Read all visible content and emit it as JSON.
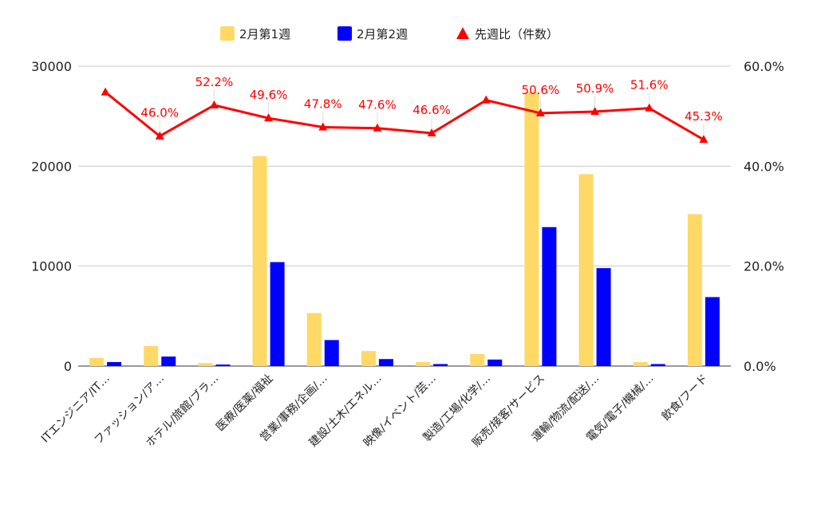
{
  "chart_data": {
    "type": "bar",
    "title": "",
    "categories": [
      "ITエンジニア/IT…",
      "ファッション/ア…",
      "ホテル/旅館/ブラ…",
      "医療/医薬/福祉",
      "営業/事務/企画/…",
      "建設/土木/エネル…",
      "映像/イベント/芸…",
      "製造/工場/化学/…",
      "販売/接客/サービス",
      "運輸/物流/配送/…",
      "電気/電子/機械/…",
      "飲食/フード"
    ],
    "series": [
      {
        "name": "2月第1週",
        "kind": "bar",
        "axis": "left",
        "color": "#FFD966",
        "values": [
          800,
          2000,
          300,
          21000,
          5300,
          1500,
          400,
          1200,
          27400,
          19200,
          400,
          15200
        ]
      },
      {
        "name": "2月第2週",
        "kind": "bar",
        "axis": "left",
        "color": "#0000FF",
        "values": [
          400,
          950,
          150,
          10400,
          2600,
          700,
          200,
          650,
          13900,
          9800,
          200,
          6900
        ]
      },
      {
        "name": "先週比（件数）",
        "kind": "line",
        "axis": "right",
        "color": "#FF0000",
        "values": [
          0.548,
          0.46,
          0.522,
          0.496,
          0.478,
          0.476,
          0.466,
          0.532,
          0.506,
          0.509,
          0.516,
          0.453
        ],
        "labels": [
          "",
          "46.0%",
          "52.2%",
          "49.6%",
          "47.8%",
          "47.6%",
          "46.6%",
          "",
          "50.6%",
          "50.9%",
          "51.6%",
          "45.3%"
        ]
      }
    ],
    "y_left": {
      "ylim": [
        0,
        30000
      ],
      "ticks": [
        "0",
        "10000",
        "20000",
        "30000"
      ]
    },
    "y_right": {
      "ylim": [
        0,
        0.6
      ],
      "ticks": [
        "0.0%",
        "20.0%",
        "40.0%",
        "60.0%"
      ]
    },
    "grid": true,
    "legend_position": "top-center"
  }
}
